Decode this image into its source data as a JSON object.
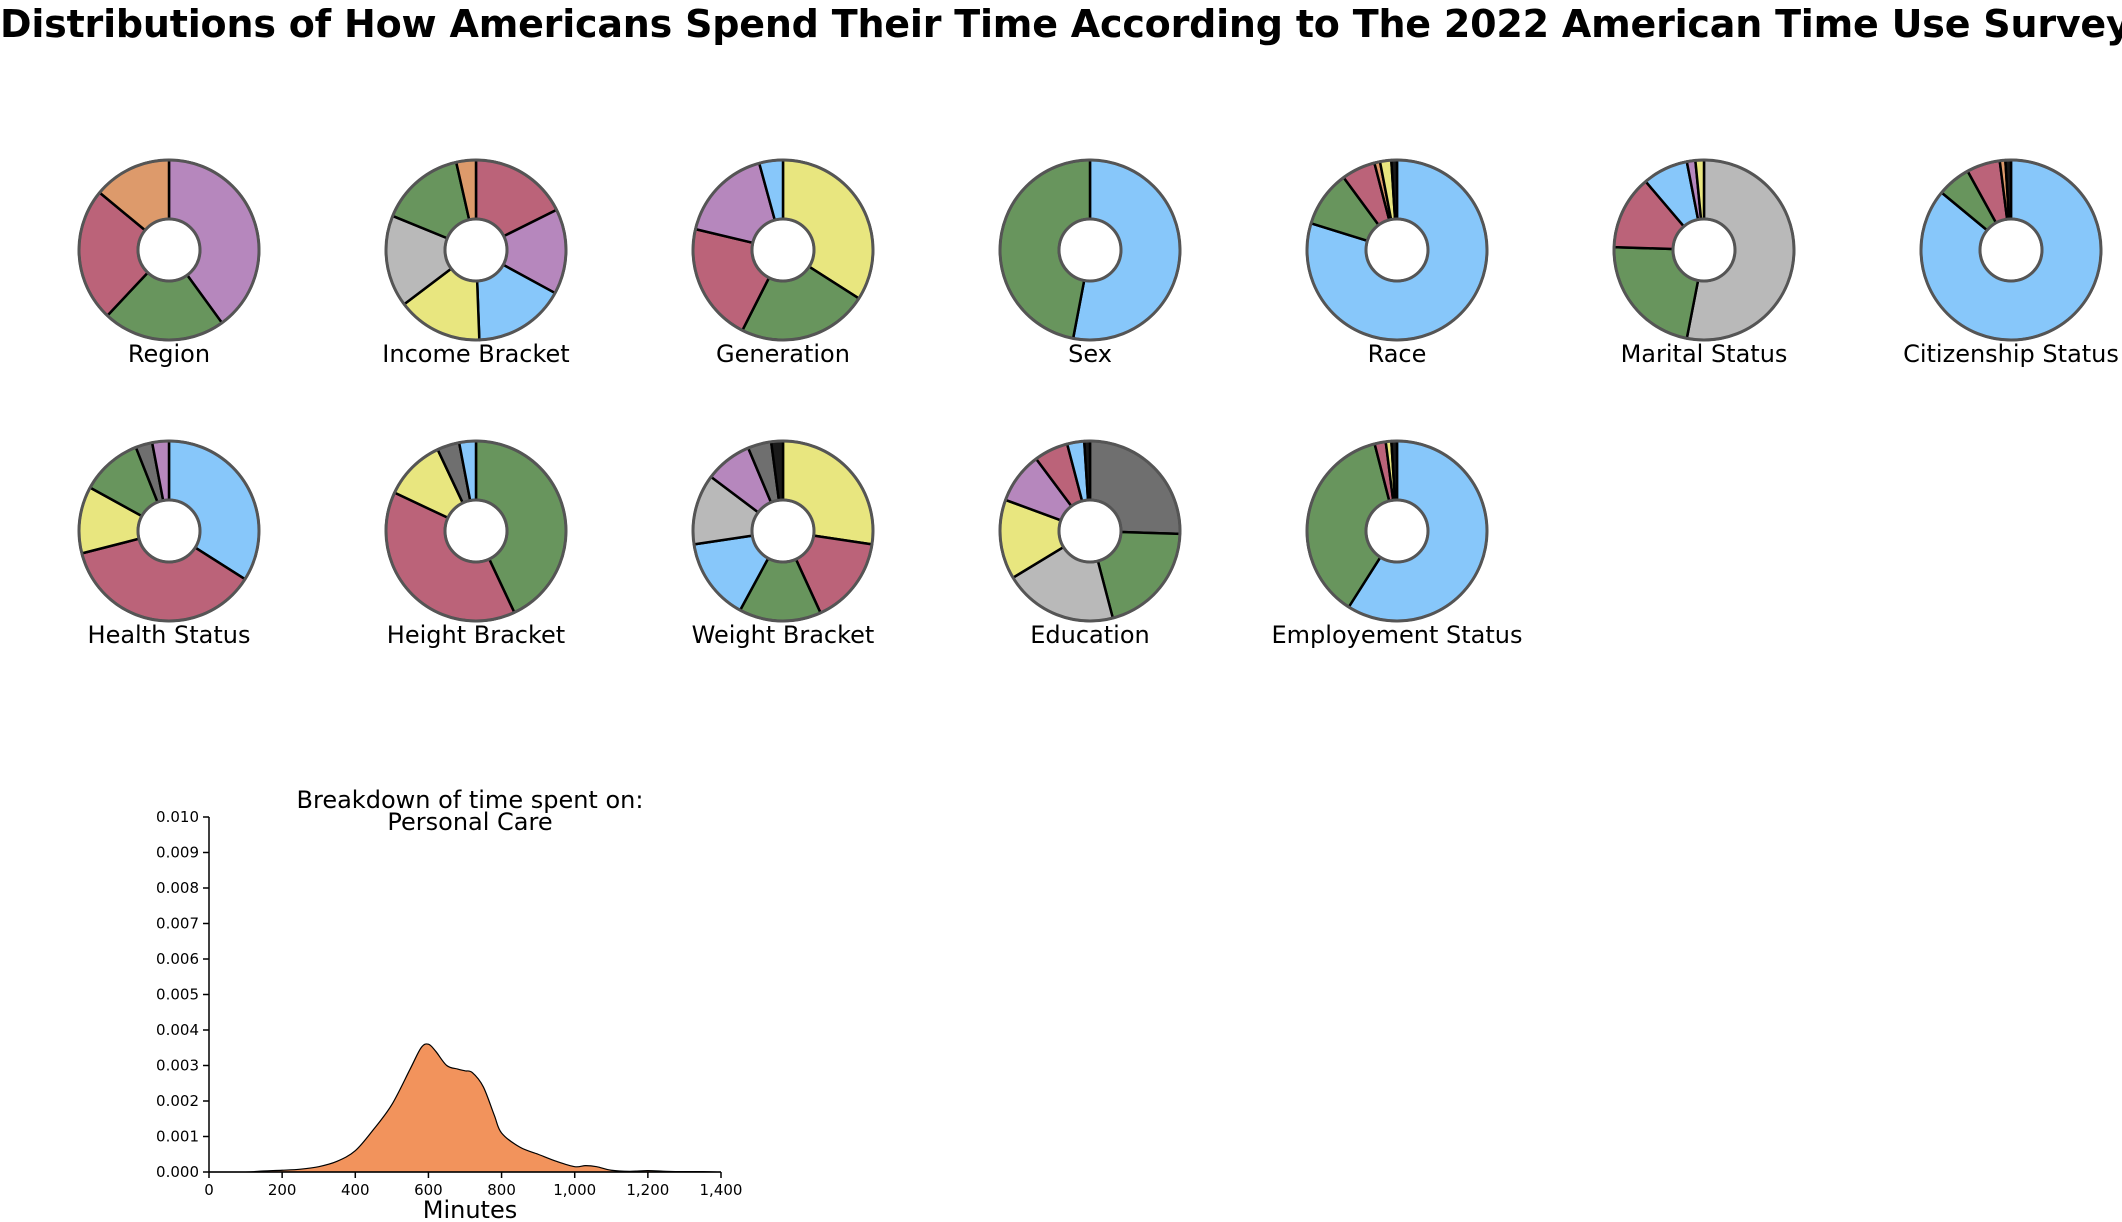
{
  "page": {
    "title": "Distributions of How Americans Spend Their Time According to The 2022 American Time Use Survey"
  },
  "colors": {
    "purple": "#b687bd",
    "green": "#68955d",
    "rose": "#bb6379",
    "orange": "#dd9a6b",
    "yellow": "#e8e67f",
    "blue": "#87c7fa",
    "gray": "#b9b9b9",
    "dark": "#6f6f6f",
    "black": "#1a1a1a",
    "density_fill": "#f2935c"
  },
  "chart_data": [
    {
      "type": "pie",
      "title": "Region",
      "values": [
        40,
        22,
        24,
        14
      ],
      "colors": [
        "purple",
        "green",
        "rose",
        "orange"
      ]
    },
    {
      "type": "pie",
      "title": "Income Bracket",
      "values": [
        15,
        13,
        14,
        13,
        14,
        13,
        3
      ],
      "colors": [
        "rose",
        "purple",
        "blue",
        "yellow",
        "gray",
        "green",
        "orange"
      ]
    },
    {
      "type": "pie",
      "title": "Generation",
      "values": [
        32,
        22,
        20,
        16,
        4
      ],
      "colors": [
        "yellow",
        "green",
        "rose",
        "purple",
        "blue"
      ]
    },
    {
      "type": "pie",
      "title": "Sex",
      "values": [
        53,
        47
      ],
      "colors": [
        "blue",
        "green"
      ]
    },
    {
      "type": "pie",
      "title": "Race",
      "values": [
        79,
        10,
        6,
        1,
        2,
        1
      ],
      "colors": [
        "blue",
        "green",
        "rose",
        "orange",
        "yellow",
        "black"
      ]
    },
    {
      "type": "pie",
      "title": "Marital Status",
      "values": [
        52,
        22,
        13,
        8,
        1.5,
        1.5
      ],
      "colors": [
        "gray",
        "green",
        "rose",
        "blue",
        "purple",
        "yellow"
      ]
    },
    {
      "type": "pie",
      "title": "Citizenship Status",
      "values": [
        86,
        6,
        6,
        1,
        1
      ],
      "colors": [
        "blue",
        "green",
        "rose",
        "orange",
        "black"
      ]
    },
    {
      "type": "pie",
      "title": "Health Status",
      "values": [
        34,
        37,
        12,
        11,
        3,
        3
      ],
      "colors": [
        "blue",
        "rose",
        "yellow",
        "green",
        "dark",
        "purple"
      ]
    },
    {
      "type": "pie",
      "title": "Height Bracket",
      "values": [
        43,
        39,
        11,
        4,
        3
      ],
      "colors": [
        "green",
        "rose",
        "yellow",
        "dark",
        "blue"
      ]
    },
    {
      "type": "pie",
      "title": "Weight Bracket",
      "values": [
        26,
        15,
        14,
        14,
        12,
        8,
        4,
        2
      ],
      "colors": [
        "yellow",
        "rose",
        "green",
        "blue",
        "gray",
        "purple",
        "dark",
        "black"
      ]
    },
    {
      "type": "pie",
      "title": "Education",
      "values": [
        25,
        20,
        20,
        14,
        9,
        6,
        3,
        1
      ],
      "colors": [
        "dark",
        "green",
        "gray",
        "yellow",
        "purple",
        "rose",
        "blue",
        "black"
      ]
    },
    {
      "type": "pie",
      "title": "Employement Status",
      "values": [
        59,
        37,
        2,
        1,
        1
      ],
      "colors": [
        "blue",
        "green",
        "rose",
        "yellow",
        "black"
      ]
    },
    {
      "type": "area",
      "title": "Breakdown of time spent on:",
      "subtitle": "Personal Care",
      "xlabel": "Minutes",
      "ylabel": "",
      "xlim": [
        0,
        1400
      ],
      "ylim": [
        0,
        0.01
      ],
      "xticks": [
        0,
        200,
        400,
        600,
        800,
        1000,
        1200,
        1400
      ],
      "xtick_labels": [
        "0",
        "200",
        "400",
        "600",
        "800",
        "1,000",
        "1,200",
        "1,400"
      ],
      "yticks": [
        0,
        0.001,
        0.002,
        0.003,
        0.004,
        0.005,
        0.006,
        0.007,
        0.008,
        0.009,
        0.01
      ],
      "ytick_labels": [
        "0.000",
        "0.001",
        "0.002",
        "0.003",
        "0.004",
        "0.005",
        "0.006",
        "0.007",
        "0.008",
        "0.009",
        "0.010"
      ],
      "x": [
        0,
        100,
        150,
        200,
        250,
        300,
        350,
        400,
        450,
        500,
        550,
        580,
        600,
        620,
        650,
        680,
        700,
        720,
        750,
        780,
        800,
        850,
        900,
        950,
        1000,
        1030,
        1060,
        1100,
        1150,
        1200,
        1250,
        1300,
        1350,
        1400
      ],
      "values": [
        0,
        0,
        3e-05,
        5e-05,
        8e-05,
        0.00015,
        0.0003,
        0.0006,
        0.0012,
        0.0019,
        0.0029,
        0.0035,
        0.0036,
        0.0034,
        0.003,
        0.0029,
        0.00285,
        0.0028,
        0.0024,
        0.0016,
        0.0011,
        0.0007,
        0.0005,
        0.0003,
        0.00015,
        0.00018,
        0.00015,
        5e-05,
        2e-05,
        4e-05,
        2e-05,
        1e-05,
        1e-05,
        0
      ]
    }
  ]
}
